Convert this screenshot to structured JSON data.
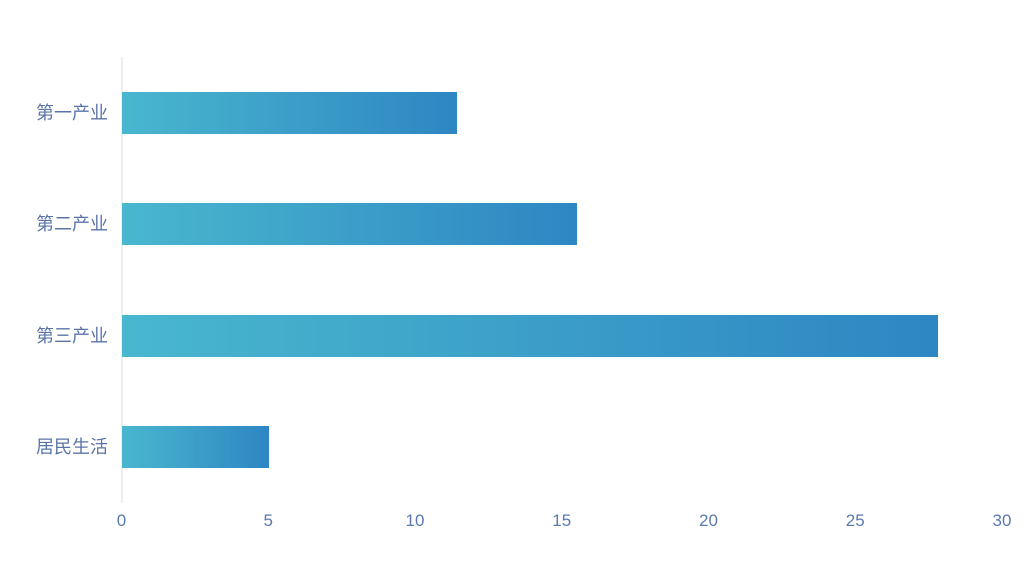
{
  "chart_data": {
    "type": "bar",
    "orientation": "horizontal",
    "title": "",
    "xlabel": "",
    "ylabel": "",
    "categories": [
      "第一产业",
      "第二产业",
      "第三产业",
      "居民生活"
    ],
    "values": [
      11.4,
      15.5,
      27.8,
      5.0
    ],
    "xlim": [
      0,
      30
    ],
    "xticks": [
      0,
      5,
      10,
      15,
      20,
      25,
      30
    ],
    "grid": false,
    "legend": false,
    "background_color": "#ffffff",
    "bar_gradient": [
      "#49b7ce",
      "#2e86c3"
    ],
    "category_label_color": "#5b74a8",
    "tick_label_color": "#5b79ad",
    "axis_line_color": "#eceef4"
  }
}
